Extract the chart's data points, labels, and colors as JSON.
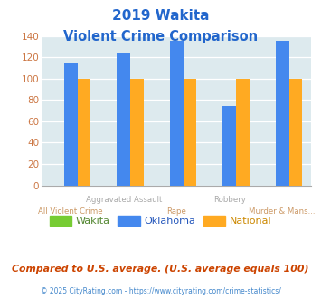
{
  "title_line1": "2019 Wakita",
  "title_line2": "Violent Crime Comparison",
  "oklahoma_values": [
    115,
    124,
    135,
    74,
    135
  ],
  "national_values": [
    100,
    100,
    100,
    100,
    100
  ],
  "wakita_values": [
    0,
    0,
    0,
    0,
    0
  ],
  "wakita_color": "#77cc33",
  "oklahoma_color": "#4488ee",
  "national_color": "#ffaa22",
  "bg_color": "#ddeaee",
  "title_color": "#2266cc",
  "ytick_color": "#cc7744",
  "grid_color": "#ffffff",
  "ylim": [
    0,
    140
  ],
  "yticks": [
    0,
    20,
    40,
    60,
    80,
    100,
    120,
    140
  ],
  "upper_labels": {
    "1": "Aggravated Assault",
    "3": "Robbery"
  },
  "lower_labels": {
    "0": "All Violent Crime",
    "2": "Rape",
    "4": "Murder & Mans..."
  },
  "upper_label_color": "#aaaaaa",
  "lower_label_color": "#cc9966",
  "legend_labels": [
    "Wakita",
    "Oklahoma",
    "National"
  ],
  "legend_colors": [
    "#77cc33",
    "#4488ee",
    "#ffaa22"
  ],
  "legend_text_colors": [
    "#558833",
    "#2255bb",
    "#cc8800"
  ],
  "footnote": "Compared to U.S. average. (U.S. average equals 100)",
  "footnote_color": "#cc4400",
  "copyright": "© 2025 CityRating.com - https://www.cityrating.com/crime-statistics/",
  "copyright_color": "#4488cc",
  "bar_width": 0.25,
  "n_groups": 5
}
